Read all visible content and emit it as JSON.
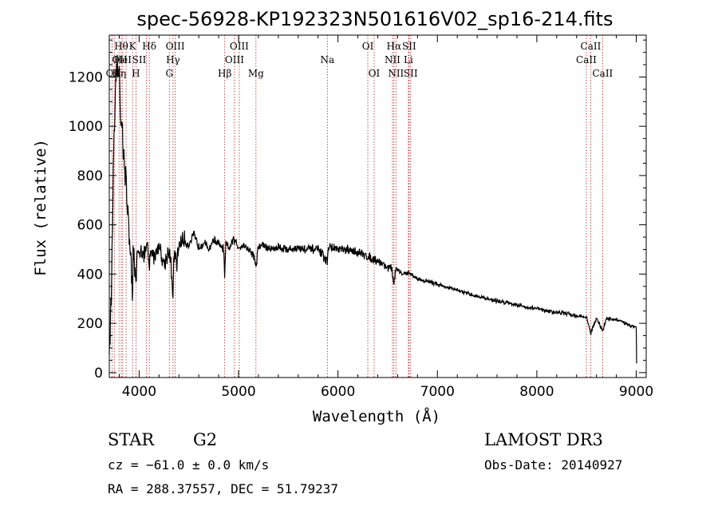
{
  "chart_data": {
    "type": "line",
    "title": "spec-56928-KP192323N501616V02_sp16-214.fits",
    "xlabel": "Wavelength (Å)",
    "ylabel": "Flux (relative)",
    "xlim": [
      3700,
      9100
    ],
    "ylim": [
      -20,
      1370
    ],
    "xticks": [
      4000,
      5000,
      6000,
      7000,
      8000,
      9000
    ],
    "yticks": [
      0,
      200,
      400,
      600,
      800,
      1000,
      1200
    ],
    "spectrum": {
      "x": [
        3700,
        3720,
        3740,
        3760,
        3780,
        3790,
        3800,
        3810,
        3820,
        3830,
        3840,
        3850,
        3860,
        3870,
        3880,
        3890,
        3900,
        3920,
        3933,
        3940,
        3968,
        3980,
        4000,
        4020,
        4050,
        4080,
        4101,
        4120,
        4150,
        4200,
        4250,
        4300,
        4320,
        4340,
        4350,
        4380,
        4400,
        4450,
        4500,
        4550,
        4600,
        4650,
        4700,
        4750,
        4800,
        4850,
        4861,
        4870,
        4900,
        4950,
        5000,
        5050,
        5100,
        5150,
        5175,
        5200,
        5250,
        5300,
        5400,
        5500,
        5600,
        5700,
        5800,
        5893,
        5900,
        6000,
        6100,
        6200,
        6300,
        6400,
        6450,
        6500,
        6540,
        6563,
        6580,
        6600,
        6650,
        6700,
        6750,
        6800,
        6900,
        7000,
        7100,
        7200,
        7300,
        7400,
        7500,
        7600,
        7700,
        7800,
        7900,
        8000,
        8100,
        8200,
        8300,
        8400,
        8500,
        8542,
        8600,
        8662,
        8700,
        8800,
        8850,
        8900,
        8950,
        9000,
        9005
      ],
      "y": [
        90,
        300,
        820,
        1100,
        1270,
        1180,
        1250,
        1080,
        980,
        1060,
        900,
        880,
        760,
        820,
        640,
        700,
        560,
        430,
        300,
        520,
        350,
        470,
        480,
        510,
        470,
        520,
        420,
        500,
        470,
        520,
        440,
        500,
        430,
        300,
        480,
        440,
        520,
        540,
        520,
        560,
        510,
        530,
        500,
        540,
        520,
        500,
        380,
        520,
        500,
        540,
        510,
        520,
        500,
        480,
        430,
        510,
        520,
        500,
        510,
        500,
        505,
        500,
        500,
        450,
        510,
        500,
        495,
        490,
        470,
        455,
        440,
        430,
        420,
        360,
        420,
        415,
        400,
        405,
        395,
        380,
        370,
        360,
        345,
        335,
        320,
        310,
        300,
        290,
        285,
        275,
        265,
        260,
        250,
        245,
        240,
        230,
        225,
        160,
        220,
        170,
        220,
        215,
        205,
        200,
        190,
        185,
        0
      ]
    },
    "lines": [
      {
        "w": 3727,
        "label": "OII",
        "row": 2,
        "anchor": "start"
      },
      {
        "w": 3750,
        "label": "Hθ",
        "row": 1,
        "anchor": "start"
      },
      {
        "w": 3798,
        "label": "Hη",
        "row": 3,
        "anchor": "middle"
      },
      {
        "w": 3820,
        "label": "OII",
        "row": 3,
        "anchor": "end"
      },
      {
        "w": 3835,
        "label": "HeI",
        "row": 2,
        "anchor": "middle"
      },
      {
        "w": 3869,
        "label": "",
        "row": 0,
        "anchor": "middle"
      },
      {
        "w": 3934,
        "label": "K",
        "row": 1,
        "anchor": "middle"
      },
      {
        "w": 3968,
        "label": "H",
        "row": 3,
        "anchor": "middle"
      },
      {
        "w": 4072,
        "label": "SII",
        "row": 2,
        "anchor": "end"
      },
      {
        "w": 4102,
        "label": "Hδ",
        "row": 1,
        "anchor": "middle"
      },
      {
        "w": 4304,
        "label": "G",
        "row": 3,
        "anchor": "middle"
      },
      {
        "w": 4341,
        "label": "Hγ",
        "row": 2,
        "anchor": "middle"
      },
      {
        "w": 4363,
        "label": "OIII",
        "row": 1,
        "anchor": "middle"
      },
      {
        "w": 4861,
        "label": "Hβ",
        "row": 3,
        "anchor": "middle"
      },
      {
        "w": 4959,
        "label": "OIII",
        "row": 2,
        "anchor": "middle"
      },
      {
        "w": 5007,
        "label": "OIII",
        "row": 1,
        "anchor": "middle"
      },
      {
        "w": 5175,
        "label": "Mg",
        "row": 3,
        "anchor": "middle"
      },
      {
        "w": 5893,
        "label": "Na",
        "row": 2,
        "anchor": "middle"
      },
      {
        "w": 6300,
        "label": "OI",
        "row": 1,
        "anchor": "middle"
      },
      {
        "w": 6364,
        "label": "OI",
        "row": 3,
        "anchor": "middle"
      },
      {
        "w": 6548,
        "label": "NII",
        "row": 2,
        "anchor": "middle"
      },
      {
        "w": 6563,
        "label": "Hα",
        "row": 1,
        "anchor": "middle"
      },
      {
        "w": 6583,
        "label": "NII",
        "row": 3,
        "anchor": "middle"
      },
      {
        "w": 6708,
        "label": "Li",
        "row": 2,
        "anchor": "middle"
      },
      {
        "w": 6716,
        "label": "SII",
        "row": 1,
        "anchor": "middle"
      },
      {
        "w": 6731,
        "label": "SII",
        "row": 3,
        "anchor": "middle"
      },
      {
        "w": 8498,
        "label": "CaII",
        "row": 2,
        "anchor": "middle"
      },
      {
        "w": 8542,
        "label": "CaII",
        "row": 1,
        "anchor": "middle"
      },
      {
        "w": 8662,
        "label": "CaII",
        "row": 3,
        "anchor": "middle"
      }
    ],
    "colors": {
      "spectrum": "#000000",
      "lines": "#b22222",
      "axes": "#000000"
    }
  },
  "info": {
    "class_label": "STAR",
    "subclass": "G2",
    "survey": "LAMOST DR3",
    "cz_line": "cz = −61.0 ± 0.0 km/s",
    "obs_date": "Obs-Date: 20140927",
    "coords": "RA = 288.37557, DEC =  51.79237"
  }
}
